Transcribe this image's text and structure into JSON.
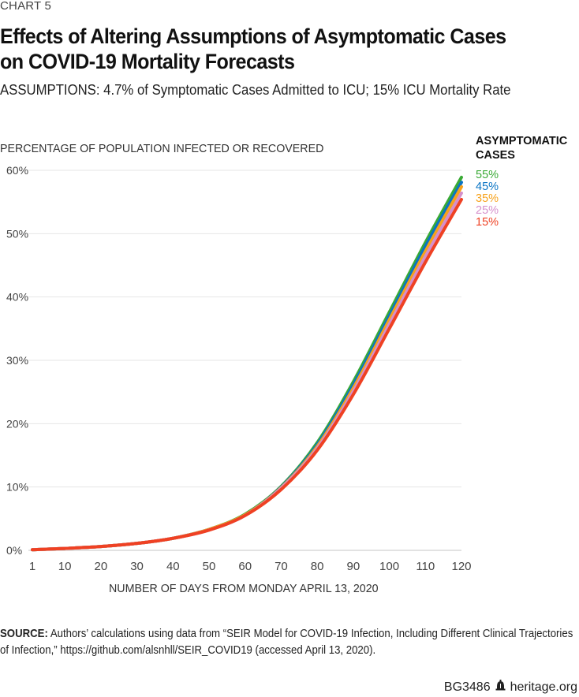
{
  "header": {
    "chart_label": "CHART 5",
    "title_line1": "Effects of Altering Assumptions of Asymptomatic Cases",
    "title_line2": "on COVID-19 Mortality Forecasts",
    "subtitle": "ASSUMPTIONS: 4.7% of Symptomatic Cases Admitted to ICU; 15% ICU Mortality Rate"
  },
  "footer": {
    "source_label": "SOURCE:",
    "source_text": "Authors’ calculations using data from “SEIR Model for COVID-19 Infection, Including Different Clinical Trajectories of Infection,” https://github.com/alsnhll/SEIR_COVID19 (accessed April 13, 2020).",
    "report_id": "BG3486",
    "logo_icon": "liberty-bell-icon",
    "site": "heritage.org"
  },
  "chart_data": {
    "type": "line",
    "title": "Effects of Altering Assumptions of Asymptomatic Cases on COVID-19 Mortality Forecasts",
    "ylabel": "PERCENTAGE OF POPULATION INFECTED OR RECOVERED",
    "xlabel": "NUMBER OF DAYS FROM MONDAY APRIL 13, 2020",
    "legend_title": "ASYMPTOMATIC CASES",
    "legend_position": "right",
    "grid": true,
    "xlim": [
      1,
      120
    ],
    "ylim": [
      0,
      60
    ],
    "xticks": [
      1,
      10,
      20,
      30,
      40,
      50,
      60,
      70,
      80,
      90,
      100,
      110,
      120
    ],
    "yticks": [
      0,
      10,
      20,
      30,
      40,
      50,
      60
    ],
    "ytick_labels": [
      "0%",
      "10%",
      "20%",
      "30%",
      "40%",
      "50%",
      "60%"
    ],
    "x": [
      1,
      10,
      20,
      30,
      40,
      50,
      60,
      70,
      80,
      90,
      100,
      110,
      120
    ],
    "series": [
      {
        "name": "55%",
        "color": "#3aaa35",
        "values": [
          0.1,
          0.3,
          0.6,
          1.1,
          1.9,
          3.3,
          5.7,
          10.1,
          17.0,
          26.6,
          37.6,
          48.6,
          58.9
        ]
      },
      {
        "name": "45%",
        "color": "#0a74c4",
        "values": [
          0.1,
          0.3,
          0.6,
          1.1,
          1.9,
          3.3,
          5.6,
          10.0,
          16.7,
          26.1,
          37.0,
          48.0,
          58.1
        ]
      },
      {
        "name": "35%",
        "color": "#f7a21b",
        "values": [
          0.1,
          0.3,
          0.6,
          1.1,
          1.9,
          3.3,
          5.6,
          9.9,
          16.4,
          25.6,
          36.4,
          47.2,
          57.4
        ]
      },
      {
        "name": "25%",
        "color": "#d58fcb",
        "values": [
          0.1,
          0.3,
          0.6,
          1.1,
          1.9,
          3.2,
          5.5,
          9.8,
          16.1,
          25.1,
          35.7,
          46.4,
          56.4
        ]
      },
      {
        "name": "15%",
        "color": "#ef4123",
        "values": [
          0.1,
          0.3,
          0.6,
          1.1,
          1.9,
          3.2,
          5.5,
          9.6,
          15.8,
          24.6,
          35.0,
          45.5,
          55.4
        ]
      }
    ]
  }
}
